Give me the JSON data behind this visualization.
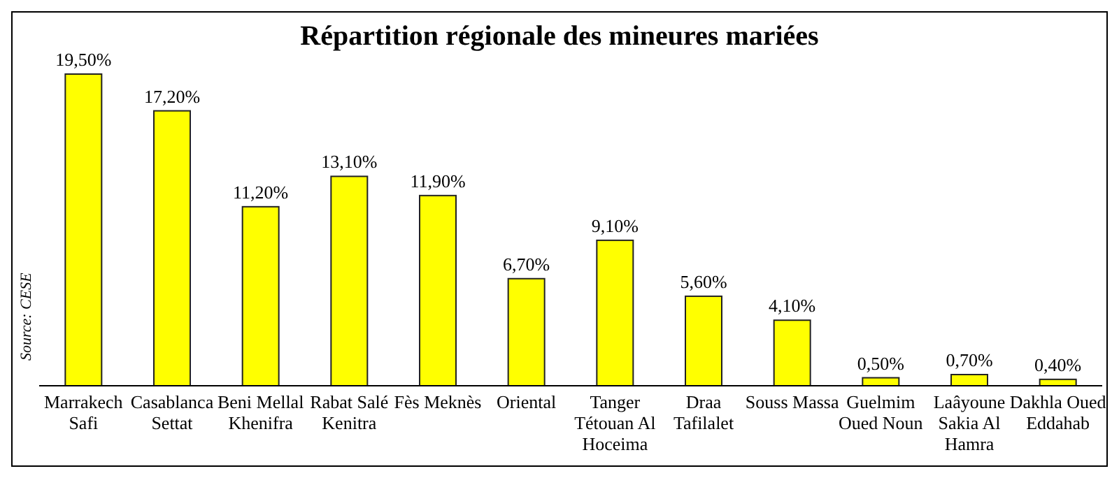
{
  "chart_data": {
    "type": "bar",
    "title": "Répartition régionale des mineures mariées",
    "categories": [
      "Marrakech Safi",
      "Casablanca Settat",
      "Beni Mellal Khenifra",
      "Rabat Salé Kenitra",
      "Fès Meknès",
      "Oriental",
      "Tanger Tétouan Al Hoceima",
      "Draa Tafilalet",
      "Souss Massa",
      "Guelmim Oued Noun",
      "Laâyoune Sakia Al Hamra",
      "Dakhla Oued Eddahab"
    ],
    "values": [
      19.5,
      17.2,
      11.2,
      13.1,
      11.9,
      6.7,
      9.1,
      5.6,
      4.1,
      0.5,
      0.7,
      0.4
    ],
    "value_labels": [
      "19,50%",
      "17,20%",
      "11,20%",
      "13,10%",
      "11,90%",
      "6,70%",
      "9,10%",
      "5,60%",
      "4,10%",
      "0,50%",
      "0,70%",
      "0,40%"
    ],
    "color": "#ffff00",
    "annotations": [
      "Source: CESE"
    ]
  }
}
